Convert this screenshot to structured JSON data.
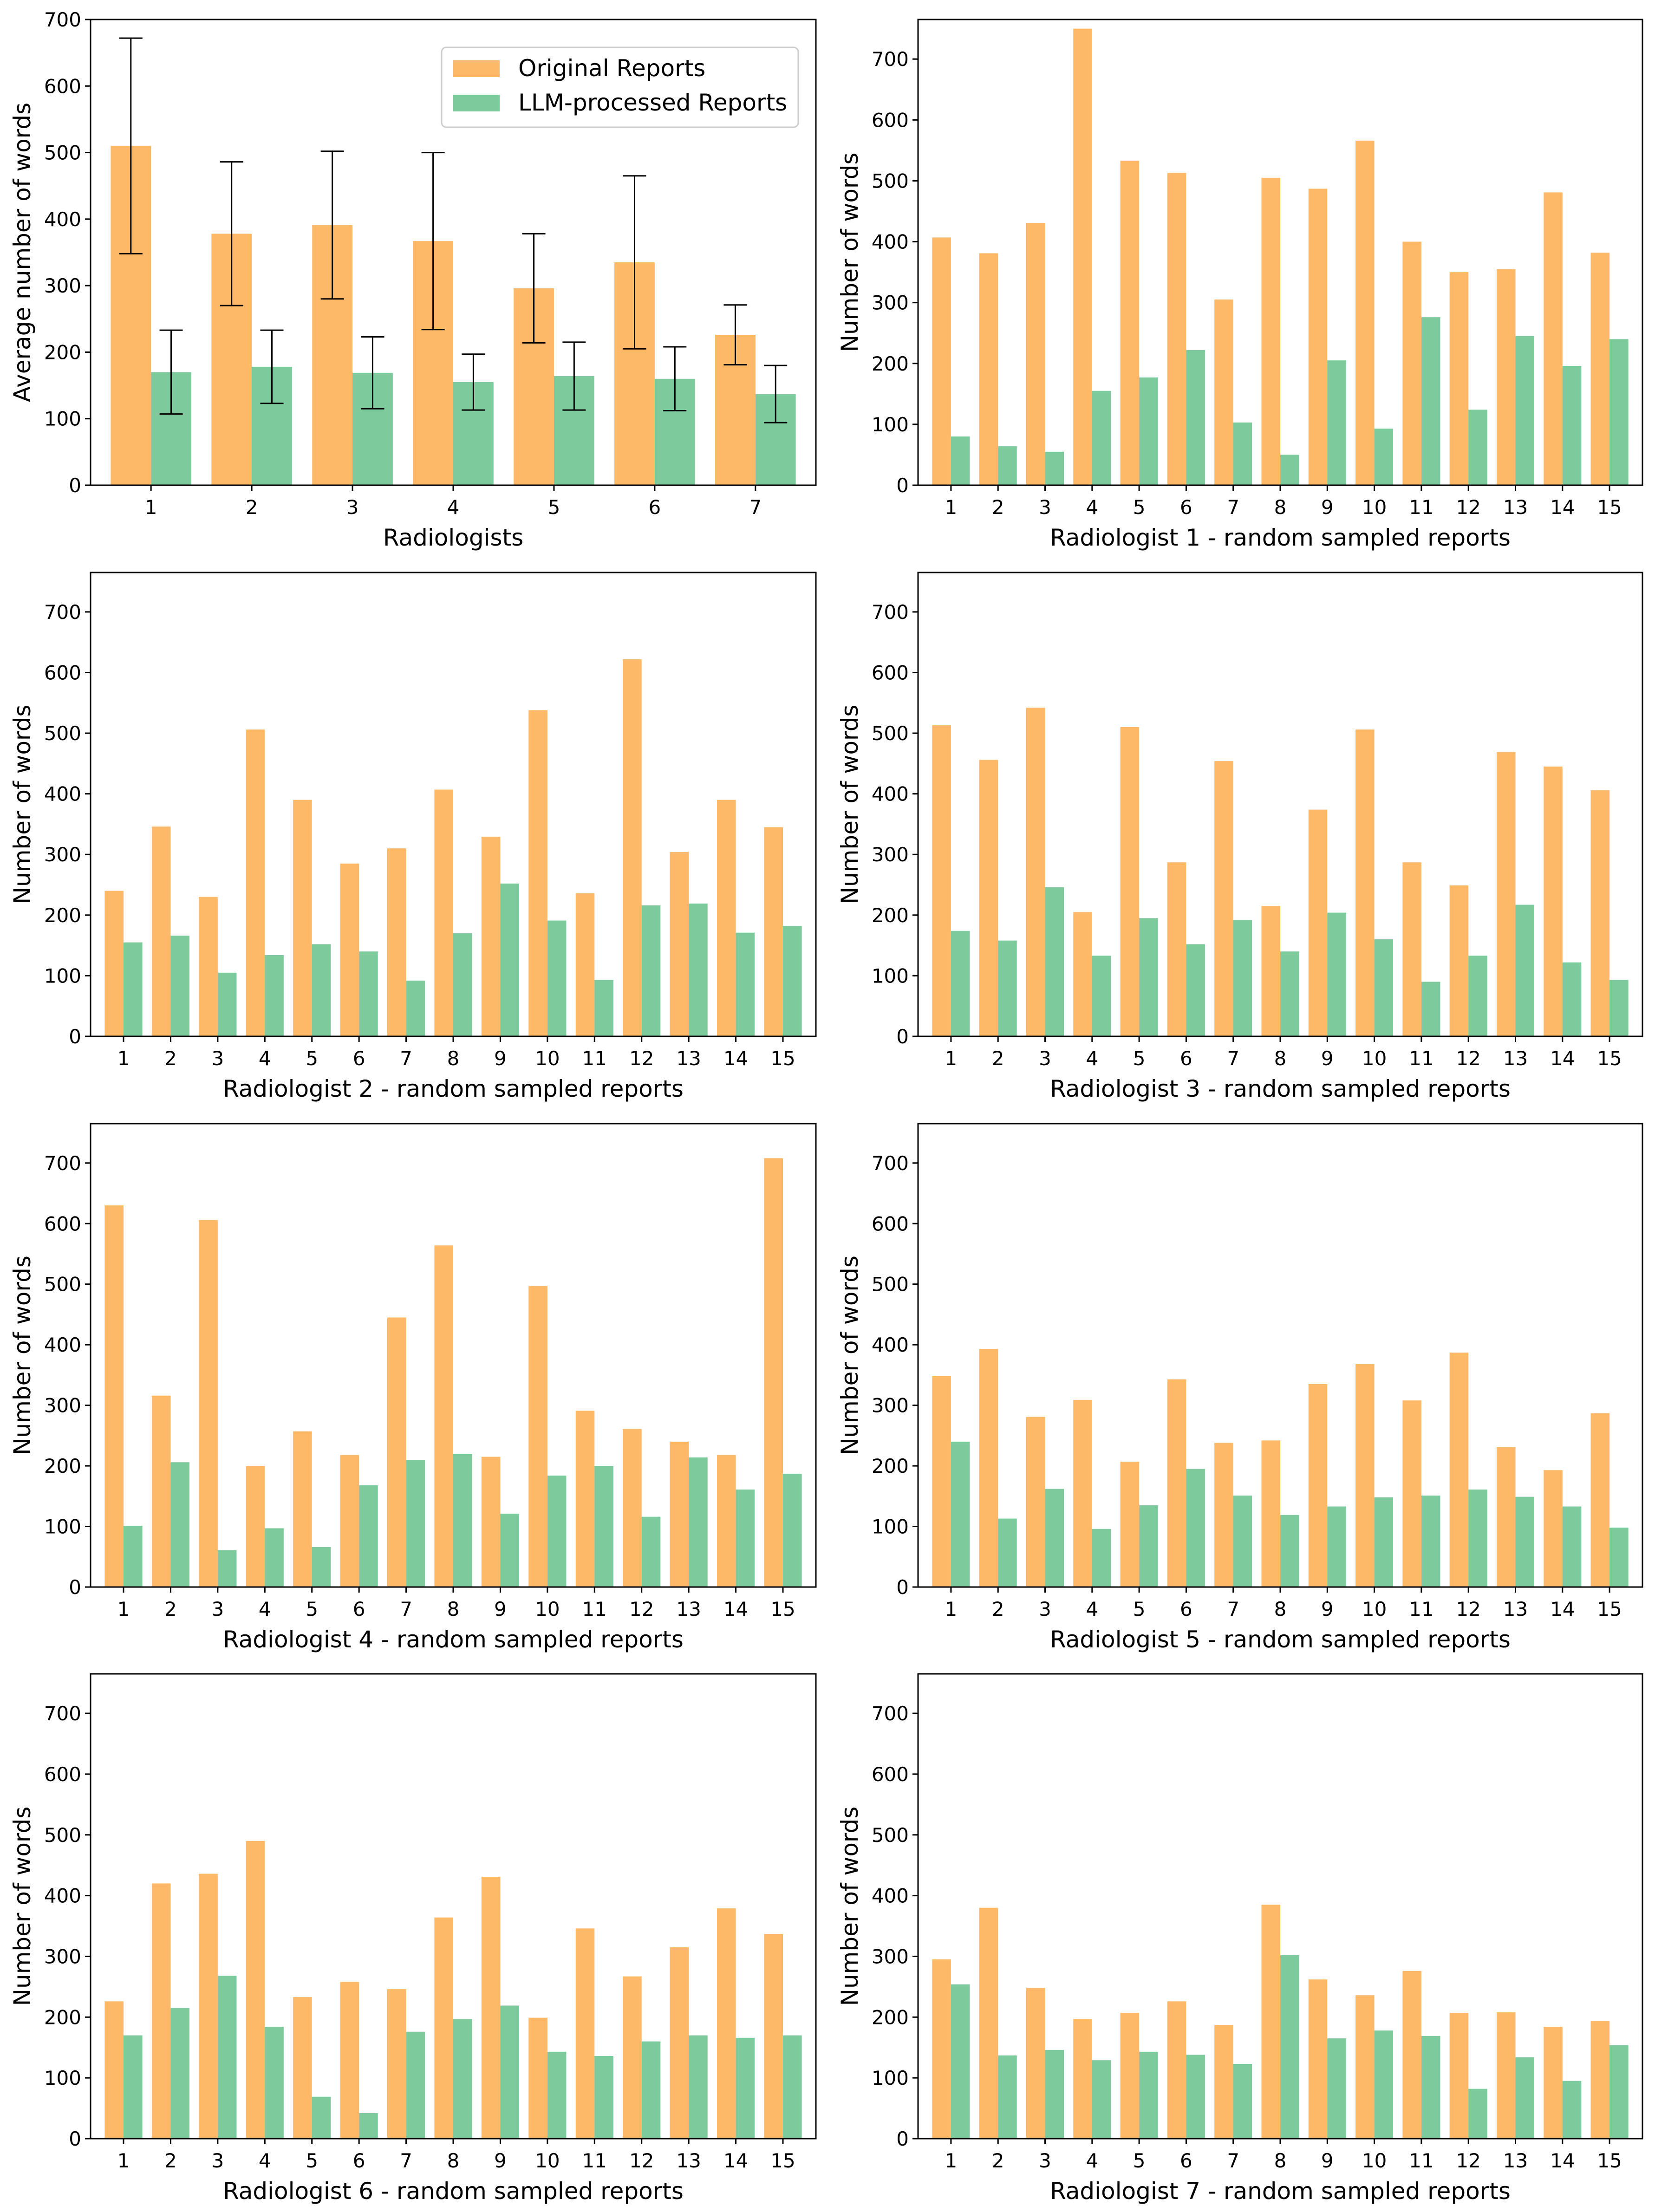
{
  "colors": {
    "original": "#FDAD4E",
    "llm": "#5DBD85",
    "axis": "#000000",
    "errorbar": "#000000",
    "background": "#ffffff"
  },
  "legend": {
    "original_label": "Original Reports",
    "llm_label": "LLM-processed Reports"
  },
  "chart_data": [
    {
      "type": "bar",
      "title": "",
      "xlabel": "Radiologists",
      "ylabel": "Average number of words",
      "categories": [
        "1",
        "2",
        "3",
        "4",
        "5",
        "6",
        "7"
      ],
      "ylim": [
        0,
        700
      ],
      "yticks": [
        0,
        100,
        200,
        300,
        400,
        500,
        600,
        700
      ],
      "series": [
        {
          "name": "Original Reports",
          "values": [
            510,
            378,
            391,
            367,
            296,
            335,
            226
          ],
          "error": [
            162,
            108,
            111,
            133,
            82,
            130,
            45
          ]
        },
        {
          "name": "LLM-processed Reports",
          "values": [
            170,
            178,
            169,
            155,
            164,
            160,
            137
          ],
          "error": [
            63,
            55,
            54,
            42,
            51,
            48,
            43
          ]
        }
      ],
      "legend_position": "top-right"
    },
    {
      "type": "bar",
      "xlabel": "Radiologist 1 - random sampled reports",
      "ylabel": "Number of words",
      "categories": [
        "1",
        "2",
        "3",
        "4",
        "5",
        "6",
        "7",
        "8",
        "9",
        "10",
        "11",
        "12",
        "13",
        "14",
        "15"
      ],
      "ylim": [
        0,
        765
      ],
      "yticks": [
        0,
        100,
        200,
        300,
        400,
        500,
        600,
        700
      ],
      "series": [
        {
          "name": "Original Reports",
          "values": [
            407,
            381,
            431,
            750,
            533,
            513,
            305,
            505,
            487,
            566,
            400,
            350,
            355,
            481,
            382
          ]
        },
        {
          "name": "LLM-processed Reports",
          "values": [
            80,
            64,
            55,
            155,
            177,
            222,
            103,
            50,
            205,
            93,
            276,
            124,
            245,
            196,
            240
          ]
        }
      ]
    },
    {
      "type": "bar",
      "xlabel": "Radiologist 2 - random sampled reports",
      "ylabel": "Number of words",
      "categories": [
        "1",
        "2",
        "3",
        "4",
        "5",
        "6",
        "7",
        "8",
        "9",
        "10",
        "11",
        "12",
        "13",
        "14",
        "15"
      ],
      "ylim": [
        0,
        765
      ],
      "yticks": [
        0,
        100,
        200,
        300,
        400,
        500,
        600,
        700
      ],
      "series": [
        {
          "name": "Original Reports",
          "values": [
            240,
            346,
            230,
            506,
            390,
            285,
            310,
            407,
            329,
            538,
            236,
            622,
            304,
            390,
            345
          ]
        },
        {
          "name": "LLM-processed Reports",
          "values": [
            155,
            166,
            105,
            134,
            152,
            140,
            92,
            170,
            252,
            191,
            93,
            216,
            219,
            171,
            182
          ]
        }
      ]
    },
    {
      "type": "bar",
      "xlabel": "Radiologist 3 - random sampled reports",
      "ylabel": "Number of words",
      "categories": [
        "1",
        "2",
        "3",
        "4",
        "5",
        "6",
        "7",
        "8",
        "9",
        "10",
        "11",
        "12",
        "13",
        "14",
        "15"
      ],
      "ylim": [
        0,
        765
      ],
      "yticks": [
        0,
        100,
        200,
        300,
        400,
        500,
        600,
        700
      ],
      "series": [
        {
          "name": "Original Reports",
          "values": [
            513,
            456,
            542,
            205,
            510,
            287,
            454,
            215,
            374,
            506,
            287,
            249,
            469,
            445,
            406
          ]
        },
        {
          "name": "LLM-processed Reports",
          "values": [
            174,
            158,
            246,
            133,
            195,
            152,
            192,
            140,
            204,
            160,
            90,
            133,
            217,
            122,
            93
          ]
        }
      ]
    },
    {
      "type": "bar",
      "xlabel": "Radiologist 4 - random sampled reports",
      "ylabel": "Number of words",
      "categories": [
        "1",
        "2",
        "3",
        "4",
        "5",
        "6",
        "7",
        "8",
        "9",
        "10",
        "11",
        "12",
        "13",
        "14",
        "15"
      ],
      "ylim": [
        0,
        765
      ],
      "yticks": [
        0,
        100,
        200,
        300,
        400,
        500,
        600,
        700
      ],
      "series": [
        {
          "name": "Original Reports",
          "values": [
            630,
            316,
            606,
            200,
            257,
            218,
            445,
            564,
            215,
            497,
            291,
            261,
            240,
            218,
            708
          ]
        },
        {
          "name": "LLM-processed Reports",
          "values": [
            101,
            206,
            61,
            97,
            66,
            168,
            210,
            220,
            121,
            184,
            200,
            116,
            214,
            161,
            187
          ]
        }
      ]
    },
    {
      "type": "bar",
      "xlabel": "Radiologist 5 - random sampled reports",
      "ylabel": "Number of words",
      "categories": [
        "1",
        "2",
        "3",
        "4",
        "5",
        "6",
        "7",
        "8",
        "9",
        "10",
        "11",
        "12",
        "13",
        "14",
        "15"
      ],
      "ylim": [
        0,
        765
      ],
      "yticks": [
        0,
        100,
        200,
        300,
        400,
        500,
        600,
        700
      ],
      "series": [
        {
          "name": "Original Reports",
          "values": [
            348,
            393,
            281,
            309,
            207,
            343,
            238,
            242,
            335,
            368,
            308,
            387,
            231,
            193,
            287
          ]
        },
        {
          "name": "LLM-processed Reports",
          "values": [
            240,
            113,
            162,
            96,
            135,
            195,
            151,
            119,
            133,
            148,
            151,
            161,
            149,
            133,
            98
          ]
        }
      ]
    },
    {
      "type": "bar",
      "xlabel": "Radiologist 6 - random sampled reports",
      "ylabel": "Number of words",
      "categories": [
        "1",
        "2",
        "3",
        "4",
        "5",
        "6",
        "7",
        "8",
        "9",
        "10",
        "11",
        "12",
        "13",
        "14",
        "15"
      ],
      "ylim": [
        0,
        765
      ],
      "yticks": [
        0,
        100,
        200,
        300,
        400,
        500,
        600,
        700
      ],
      "series": [
        {
          "name": "Original Reports",
          "values": [
            226,
            420,
            436,
            490,
            233,
            258,
            246,
            364,
            431,
            199,
            346,
            267,
            315,
            379,
            337
          ]
        },
        {
          "name": "LLM-processed Reports",
          "values": [
            170,
            215,
            268,
            184,
            69,
            42,
            176,
            197,
            219,
            143,
            136,
            160,
            170,
            166,
            170
          ]
        }
      ]
    },
    {
      "type": "bar",
      "xlabel": "Radiologist 7 - random sampled reports",
      "ylabel": "Number of words",
      "categories": [
        "1",
        "2",
        "3",
        "4",
        "5",
        "6",
        "7",
        "8",
        "9",
        "10",
        "11",
        "12",
        "13",
        "14",
        "15"
      ],
      "ylim": [
        0,
        765
      ],
      "yticks": [
        0,
        100,
        200,
        300,
        400,
        500,
        600,
        700
      ],
      "series": [
        {
          "name": "Original Reports",
          "values": [
            295,
            380,
            248,
            197,
            207,
            226,
            187,
            385,
            262,
            236,
            276,
            207,
            208,
            184,
            194
          ]
        },
        {
          "name": "LLM-processed Reports",
          "values": [
            254,
            137,
            146,
            129,
            143,
            138,
            123,
            302,
            165,
            178,
            169,
            82,
            134,
            95,
            154
          ]
        }
      ]
    }
  ]
}
